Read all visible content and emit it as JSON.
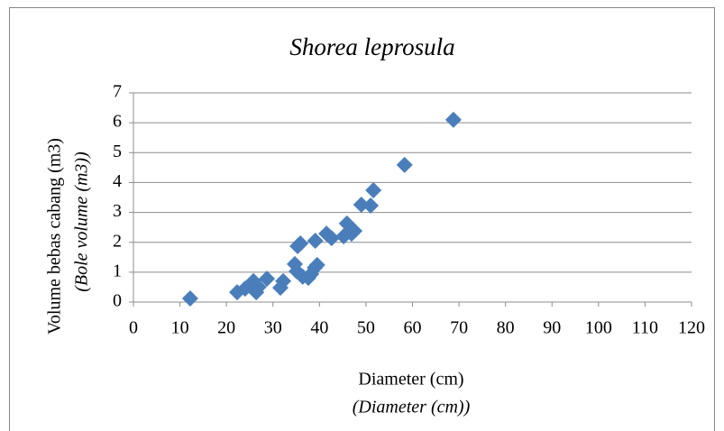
{
  "chart_data": {
    "type": "scatter",
    "title": "Shorea leprosula",
    "x_label": "Diameter (cm)",
    "x_label_translation": "(Diameter (cm))",
    "y_label": "Volume bebas cabang (m3)",
    "y_label_translation": "(Bole volume (m3))",
    "x": [
      12.2,
      22.3,
      24,
      25.8,
      26.4,
      26.9,
      28.7,
      31.6,
      32.2,
      34.7,
      35.1,
      35.3,
      35.9,
      36.4,
      37.6,
      38.2,
      39,
      39.5,
      39.1,
      41.5,
      42.6,
      45.2,
      45.9,
      46.9,
      47.5,
      49,
      51,
      51.6,
      58.3,
      68.8
    ],
    "values": [
      0.12,
      0.33,
      0.45,
      0.7,
      0.33,
      0.5,
      0.78,
      0.48,
      0.7,
      1.27,
      1.03,
      1.87,
      1.96,
      0.85,
      0.81,
      0.94,
      1.15,
      1.24,
      2.05,
      2.29,
      2.14,
      2.2,
      2.63,
      2.29,
      2.38,
      3.26,
      3.23,
      3.74,
      4.59,
      6.1
    ],
    "color": "#4a7ebb",
    "xlim": [
      0,
      120
    ],
    "xticks": [
      0,
      10,
      20,
      30,
      40,
      50,
      60,
      70,
      80,
      90,
      100,
      110,
      120
    ],
    "ylim": [
      0,
      7
    ],
    "yticks": [
      0,
      1,
      2,
      3,
      4,
      5,
      6,
      7
    ],
    "grid": true
  }
}
